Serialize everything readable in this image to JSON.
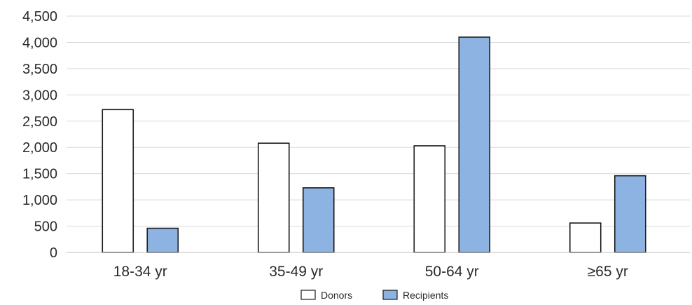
{
  "chart_data": {
    "type": "bar",
    "categories": [
      "18-34 yr",
      "35-49 yr",
      "50-64 yr",
      "≥65 yr"
    ],
    "series": [
      {
        "name": "Donors",
        "values": [
          2720,
          2080,
          2030,
          560
        ],
        "color": "#ffffff"
      },
      {
        "name": "Recipients",
        "values": [
          460,
          1230,
          4100,
          1460
        ],
        "color": "#8db3e2"
      }
    ],
    "ylim": [
      0,
      4500
    ],
    "yticks": [
      0,
      500,
      1000,
      1500,
      2000,
      2500,
      3000,
      3500,
      4000,
      4500
    ],
    "ytick_labels": [
      "0",
      "500",
      "1,000",
      "1,500",
      "2,000",
      "2,500",
      "3,000",
      "3,500",
      "4,000",
      "4,500"
    ],
    "grid": true,
    "legend_position": "bottom-center",
    "title": "",
    "xlabel": "",
    "ylabel": ""
  }
}
